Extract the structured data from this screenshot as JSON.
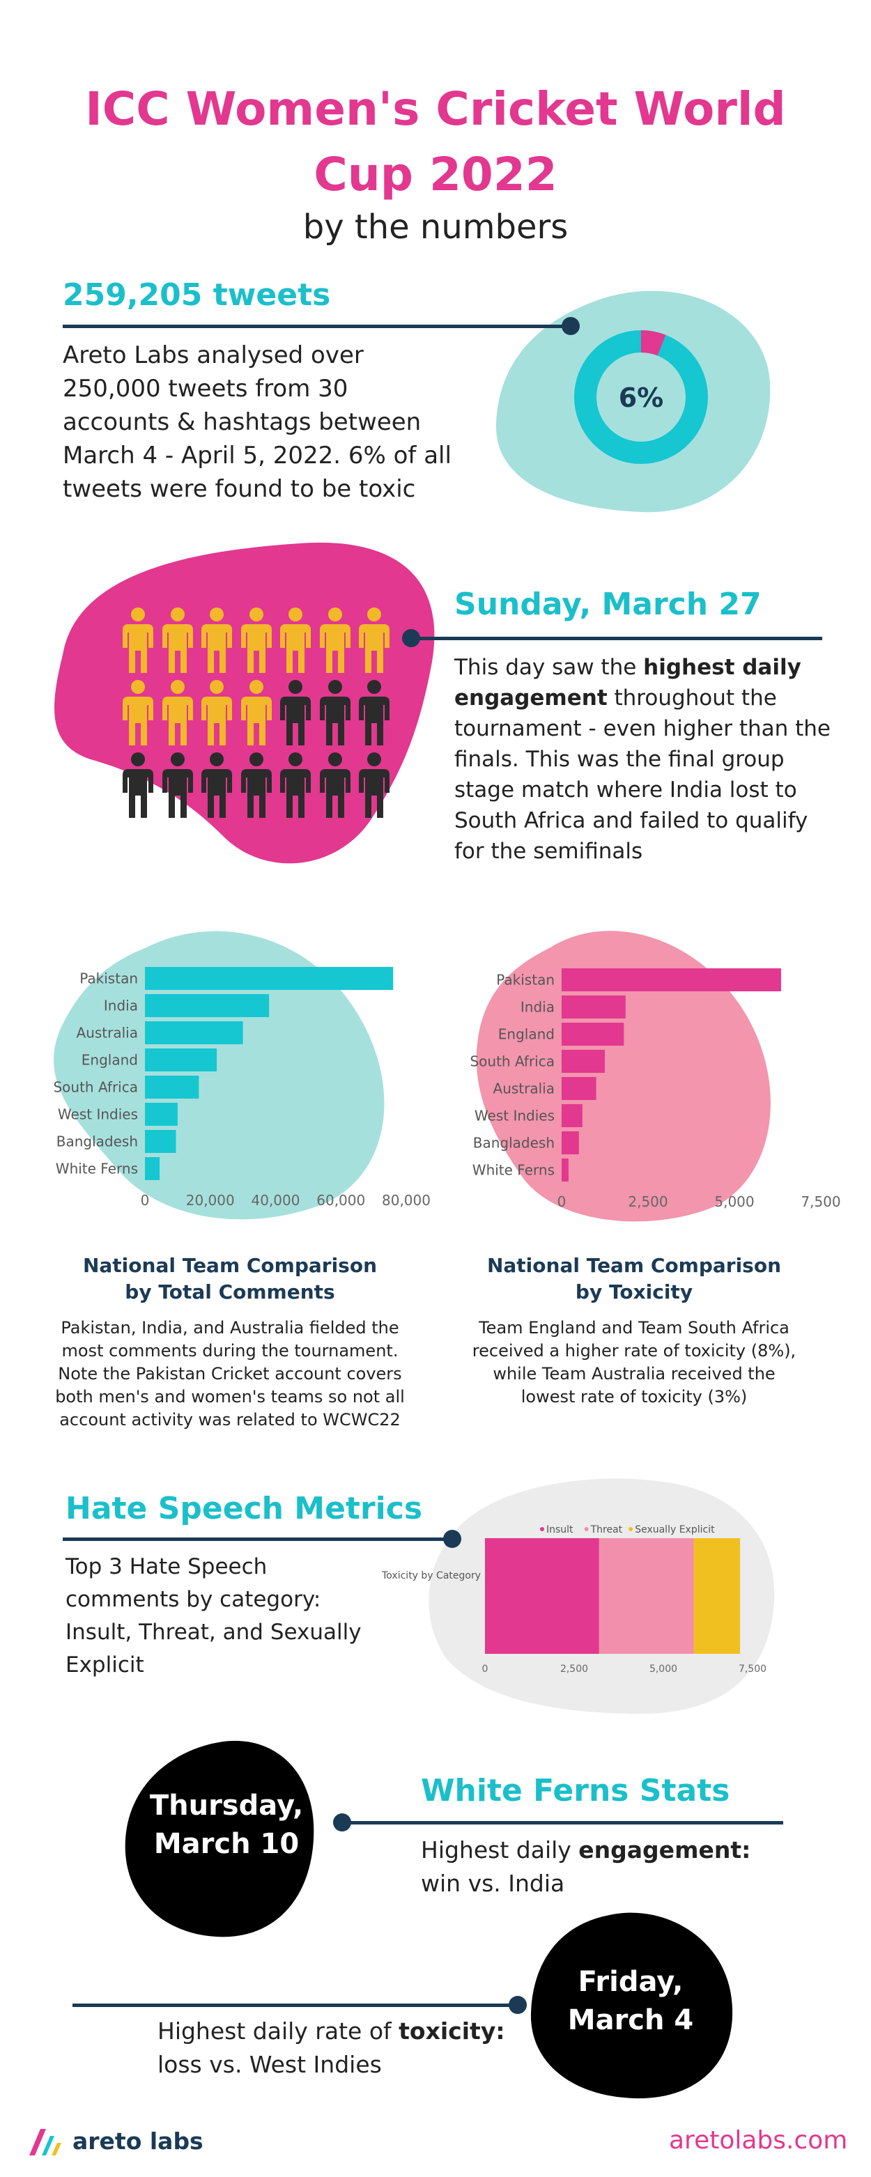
{
  "header": {
    "title_line1": "ICC Women's Cricket World",
    "title_line2": "Cup 2022",
    "subtitle": "by the numbers"
  },
  "tweets": {
    "heading": "259,205 tweets",
    "body": [
      "Areto Labs analysed over",
      "250,000 tweets from 30",
      "accounts & hashtags between",
      "March 4 - April 5, 2022. 6% of all",
      "tweets were found to be toxic"
    ],
    "donut_label": "6%",
    "toxic_fraction": 0.06,
    "colors": {
      "ring": "#16c6d1",
      "toxic": "#e2388f",
      "blob": "#a6e0dd"
    }
  },
  "sunday": {
    "heading": "Sunday, March 27",
    "body_pre": "This day saw the ",
    "body_bold": "highest daily engagement",
    "body_post": " throughout the tournament - even higher than the finals. This was the final group stage match where India lost to South Africa and failed to qualify for the semifinals",
    "people_rows": 3,
    "people_cols": 7,
    "highlighted_people": 11,
    "colors": {
      "highlight": "#f2b82a",
      "other": "#2b2b2b",
      "blob": "#e2388f"
    }
  },
  "chart_data": [
    {
      "type": "bar",
      "orientation": "horizontal",
      "title": "National Team Comparison by Total Comments",
      "categories": [
        "Pakistan",
        "India",
        "Australia",
        "England",
        "South Africa",
        "West Indies",
        "Bangladesh",
        "White Ferns"
      ],
      "values": [
        76000,
        38000,
        30000,
        22000,
        16500,
        10000,
        9500,
        4500
      ],
      "ticks": [
        "0",
        "20,000",
        "40,000",
        "60,000",
        "80,000"
      ],
      "xlim": [
        0,
        80000
      ],
      "color": "#16c6d1"
    },
    {
      "type": "bar",
      "orientation": "horizontal",
      "title": "National Team Comparison by Toxicity",
      "categories": [
        "Pakistan",
        "India",
        "England",
        "South Africa",
        "Australia",
        "West Indies",
        "Bangladesh",
        "White Ferns"
      ],
      "values": [
        6350,
        1850,
        1800,
        1250,
        1000,
        600,
        500,
        200
      ],
      "ticks": [
        "0",
        "2,500",
        "5,000",
        "7,500"
      ],
      "xlim": [
        0,
        7500
      ],
      "color": "#e2388f"
    },
    {
      "type": "bar",
      "orientation": "horizontal",
      "stacked": true,
      "title": "Toxicity by Category",
      "categories": [
        "Toxicity by Category"
      ],
      "series": [
        {
          "name": "Insult",
          "values": [
            3200
          ],
          "color": "#e2388f"
        },
        {
          "name": "Threat",
          "values": [
            2650
          ],
          "color": "#f28fad"
        },
        {
          "name": "Sexually Explicit",
          "values": [
            1300
          ],
          "color": "#f0c020"
        }
      ],
      "ticks": [
        "0",
        "2,500",
        "5,000",
        "7,500"
      ],
      "xlim": [
        0,
        7500
      ]
    }
  ],
  "comments_section": {
    "title_line1": "National Team Comparison",
    "title_line2": "by Total Comments",
    "body": [
      "Pakistan, India, and Australia fielded the",
      "most comments during the tournament.",
      "Note the Pakistan Cricket account covers",
      "both men's and women's teams so not all",
      "account activity was related to WCWC22"
    ]
  },
  "toxicity_section": {
    "title_line1": "National Team Comparison",
    "title_line2": "by Toxicity",
    "body": [
      "Team England and Team South Africa",
      "received a higher rate of toxicity (8%),",
      "while Team Australia received the",
      "lowest rate of toxicity (3%)"
    ]
  },
  "hate_speech": {
    "heading": "Hate Speech Metrics",
    "body": [
      "Top 3 Hate Speech",
      "comments by category:",
      "Insult, Threat, and Sexually",
      "Explicit"
    ]
  },
  "white_ferns": {
    "heading": "White Ferns Stats",
    "date1_line1": "Thursday,",
    "date1_line2": "March 10",
    "stat1_pre": "Highest daily ",
    "stat1_bold": "engagement:",
    "stat1_line2": "win vs. India",
    "date2_line1": "Friday,",
    "date2_line2": "March 4",
    "stat2_pre": "Highest daily rate of ",
    "stat2_bold": "toxicity:",
    "stat2_line2": "loss vs. West Indies"
  },
  "footer": {
    "brand": "areto labs",
    "url": "aretolabs.com"
  }
}
